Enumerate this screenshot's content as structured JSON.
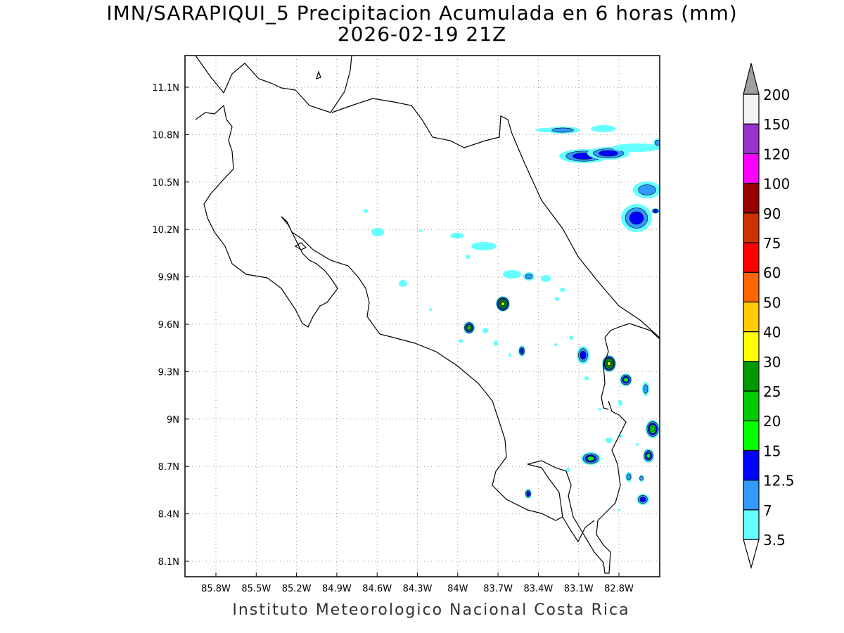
{
  "map": {
    "title_line1": "IMN/SARAPIQUI_5 Precipitacion Acumulada en 6 horas (mm)",
    "title_line2": "2026-02-19 21Z",
    "footer": "Instituto Meteorologico Nacional Costa Rica",
    "lon_range": [
      -86.0,
      -82.5
    ],
    "lat_range": [
      8.0,
      11.3
    ],
    "lon_ticks": [
      "85.8W",
      "85.5W",
      "85.2W",
      "84.9W",
      "84.6W",
      "84.3W",
      "84W",
      "83.7W",
      "83.4W",
      "83.1W",
      "82.8W"
    ],
    "lat_ticks": [
      "8.1N",
      "8.4N",
      "8.7N",
      "9N",
      "9.3N",
      "9.6N",
      "9.9N",
      "10.2N",
      "10.5N",
      "10.8N",
      "11.1N"
    ],
    "grid": "dotted"
  },
  "colorbar": {
    "levels": [
      "3.5",
      "7",
      "12.5",
      "15",
      "20",
      "25",
      "30",
      "40",
      "50",
      "60",
      "75",
      "90",
      "100",
      "120",
      "150",
      "200"
    ],
    "colors": [
      "#66ffff",
      "#3399ff",
      "#0000ff",
      "#00ff00",
      "#00cc00",
      "#009900",
      "#ffff00",
      "#ffcc00",
      "#ff6600",
      "#ff0000",
      "#cc3300",
      "#990000",
      "#ff00ff",
      "#9933cc",
      "#f2f2f2",
      "#a0a0a0"
    ]
  }
}
